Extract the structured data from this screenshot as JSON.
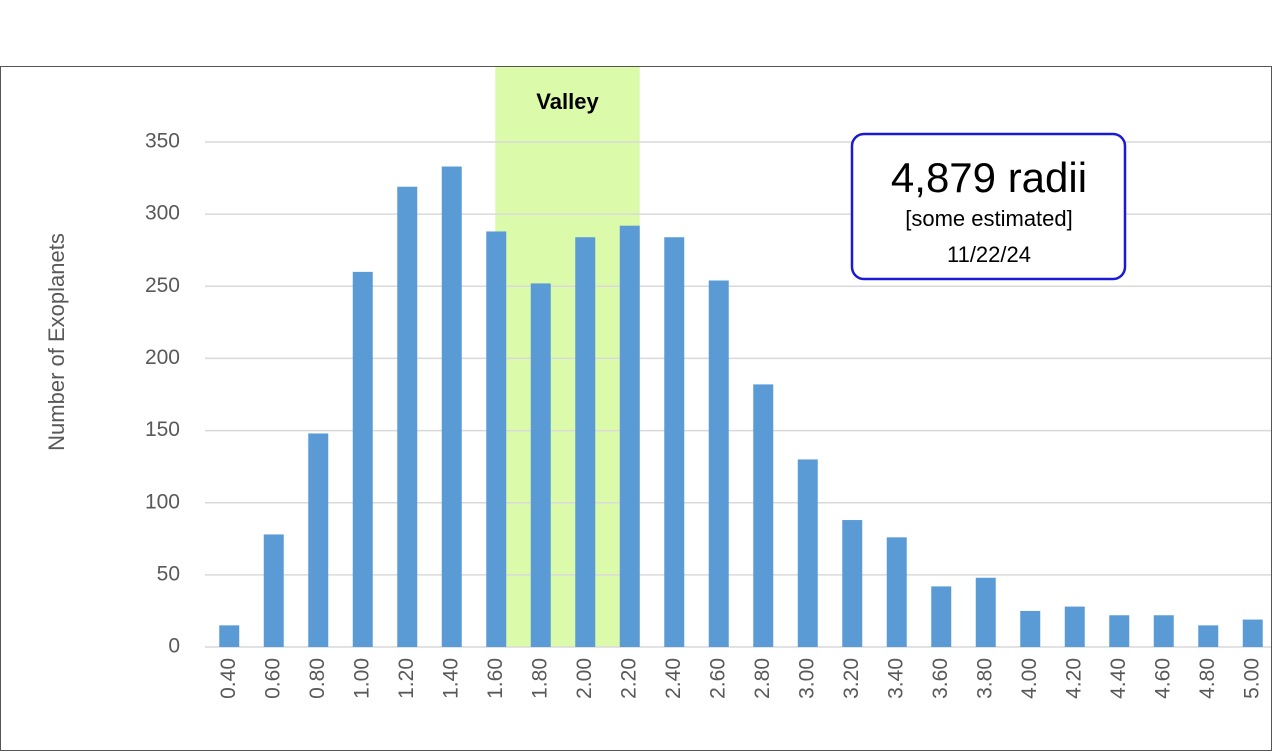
{
  "chart_data": {
    "type": "bar",
    "y_label": "Number of Exoplanets",
    "categories": [
      "0.40",
      "0.60",
      "0.80",
      "1.00",
      "1.20",
      "1.40",
      "1.60",
      "1.80",
      "2.00",
      "2.20",
      "2.40",
      "2.60",
      "2.80",
      "3.00",
      "3.20",
      "3.40",
      "3.60",
      "3.80",
      "4.00",
      "4.20",
      "4.40",
      "4.60",
      "4.80",
      "5.00"
    ],
    "values": [
      15,
      78,
      148,
      260,
      319,
      333,
      288,
      252,
      284,
      292,
      284,
      254,
      182,
      130,
      88,
      76,
      42,
      48,
      25,
      28,
      22,
      22,
      15,
      19
    ],
    "color": "#5b9bd5",
    "ylim": [
      0,
      350
    ],
    "yticks": [
      0,
      50,
      100,
      150,
      200,
      250,
      300,
      350
    ],
    "grid": true,
    "highlight": {
      "label": "Valley",
      "categories": [
        "1.60",
        "2.20"
      ],
      "color": "#dcfbaa"
    },
    "annotation": {
      "title": "4,879 radii",
      "note": "[some estimated]",
      "date": "11/22/24"
    }
  }
}
